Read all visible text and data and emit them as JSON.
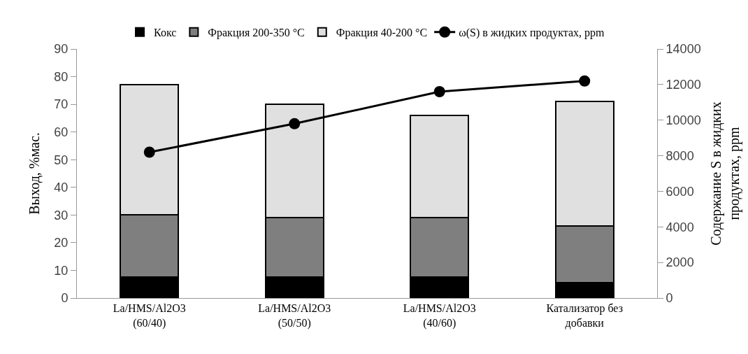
{
  "chart_data": {
    "type": "bar",
    "stacked": true,
    "categories": [
      "La/HMS/Al2O3\n(60/40)",
      "La/HMS/Al2O3\n(50/50)",
      "La/HMS/Al2O3\n(40/60)",
      "Катализатор без\nдобавки"
    ],
    "series": [
      {
        "name": "Кокс",
        "color": "#000000",
        "values": [
          7.5,
          7.5,
          7.5,
          5.5
        ]
      },
      {
        "name": "Фракция 200-350 °C",
        "color": "#7f7f7f",
        "values": [
          22.5,
          21.5,
          21.5,
          20.5
        ]
      },
      {
        "name": "Фракция 40-200 °C",
        "color": "#e0e0e0",
        "values": [
          47,
          41,
          37,
          45
        ]
      },
      {
        "name": "ω(S) в жидких продуктах, ppm",
        "type": "line",
        "axis": "y2",
        "color": "#000000",
        "marker": "circle",
        "values": [
          8200,
          9800,
          11600,
          12200
        ]
      }
    ],
    "ylabel": "Выход, %мас.",
    "y2label": "Содержание S в жидких\nпродуктах, ppm",
    "ylim": [
      0,
      90
    ],
    "yticks": [
      0,
      10,
      20,
      30,
      40,
      50,
      60,
      70,
      80,
      90
    ],
    "y2lim": [
      0,
      14000
    ],
    "y2ticks": [
      0,
      2000,
      4000,
      6000,
      8000,
      10000,
      12000,
      14000
    ],
    "legend": "top"
  }
}
